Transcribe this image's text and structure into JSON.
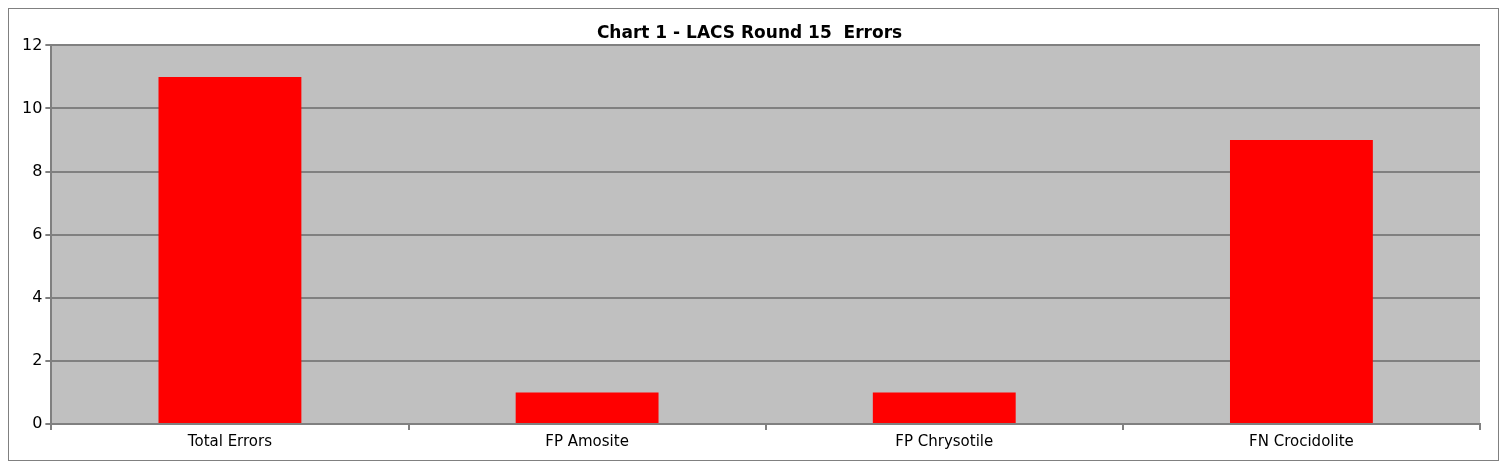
{
  "chart_data": {
    "type": "bar",
    "title": "Chart 1 - LACS Round 15  Errors",
    "categories": [
      "Total Errors",
      "FP Amosite",
      "FP Chrysotile",
      "FN Crocidolite"
    ],
    "values": [
      11,
      1,
      1,
      9
    ],
    "color": "#ff0000",
    "ylim": [
      0,
      12
    ],
    "yticks": [
      0,
      2,
      4,
      6,
      8,
      10,
      12
    ],
    "grid": "y",
    "legend": false
  }
}
